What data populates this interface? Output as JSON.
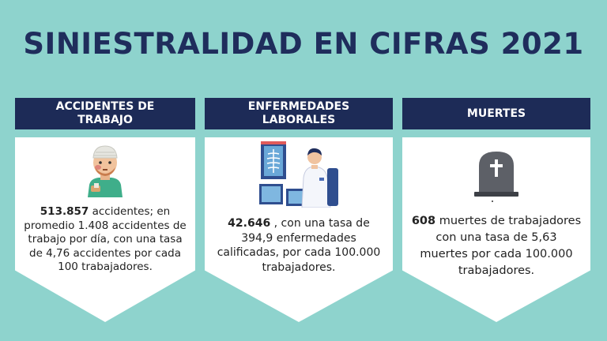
{
  "title": "SINIESTRALIDAD EN CIFRAS 2021",
  "columns": [
    {
      "header_line1": "ACCIDENTES DE",
      "header_line2": "TRABAJO",
      "icon": "injured-worker-icon",
      "value": "513.857",
      "text": " accidentes; en promedio 1.408 accidentes de trabajo por día, con una tasa de 4,76 accidentes por cada 100 trabajadores."
    },
    {
      "header_line1": "ENFERMEDADES",
      "header_line2": "LABORALES",
      "icon": "doctor-xray-icon",
      "value": "42.646",
      "text": " , con una tasa de 394,9 enfermedades calificadas, por cada 100.000 trabajadores."
    },
    {
      "header_line1": "MUERTES",
      "header_line2": "",
      "icon": "tombstone-icon",
      "value": "608",
      "text": " muertes de trabajadores con una tasa de 5,63 muertes por cada 100.000 trabajadores."
    }
  ],
  "colors": {
    "background": "#8ed3cd",
    "header_bg": "#1d2b57",
    "title": "#1f2d5c"
  }
}
